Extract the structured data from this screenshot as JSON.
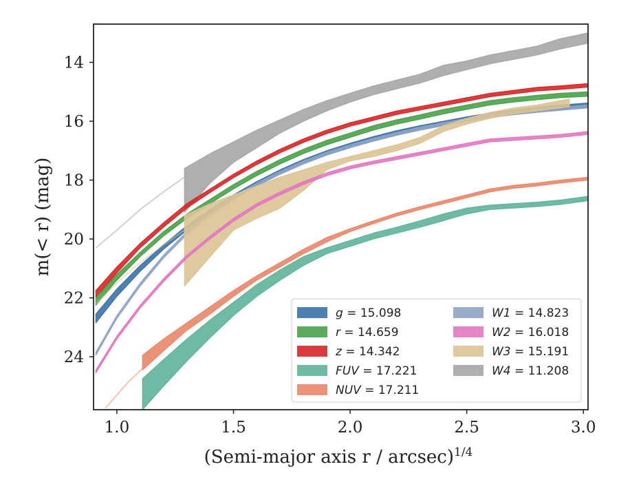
{
  "chart_data": {
    "type": "line",
    "xlabel": "(Semi-major axis r / arcsec)",
    "xlabel_sup": "1/4",
    "ylabel": "m(< r) (mag)",
    "xlim": [
      0.9,
      3.02
    ],
    "ylim": [
      25.8,
      12.7
    ],
    "y_inverted": true,
    "grid": false,
    "legend_placement": "lower-right",
    "x_ticks": [
      1.0,
      1.5,
      2.0,
      2.5,
      3.0
    ],
    "x_tick_labels": [
      "1.0",
      "1.5",
      "2.0",
      "2.5",
      "3.0"
    ],
    "y_ticks": [
      14,
      16,
      18,
      20,
      22,
      24
    ],
    "y_tick_labels": [
      "14",
      "16",
      "18",
      "20",
      "22",
      "24"
    ],
    "series": [
      {
        "name": "W4",
        "band_label": "W4 = 11.208",
        "color": "#a6a6a6",
        "faint_x": [
          0.91,
          1.0,
          1.1,
          1.2,
          1.29
        ],
        "faint_y": [
          20.3,
          19.7,
          19.0,
          18.4,
          17.9
        ],
        "x": [
          1.29,
          1.4,
          1.5,
          1.6,
          1.7,
          1.8,
          1.9,
          2.0,
          2.1,
          2.2,
          2.3,
          2.4,
          2.5,
          2.6,
          2.7,
          2.8,
          2.9,
          3.02
        ],
        "y_upper": [
          17.6,
          17.1,
          16.7,
          16.3,
          15.95,
          15.6,
          15.3,
          15.05,
          14.8,
          14.6,
          14.4,
          14.1,
          13.95,
          13.75,
          13.6,
          13.45,
          13.2,
          13.0
        ],
        "y_lower": [
          19.1,
          18.1,
          17.4,
          16.9,
          16.4,
          16.0,
          15.65,
          15.35,
          15.1,
          14.9,
          14.7,
          14.45,
          14.25,
          14.05,
          13.9,
          13.75,
          13.55,
          13.35
        ]
      },
      {
        "name": "z",
        "band_label": "z = 14.342",
        "color": "#d62728",
        "x": [
          0.91,
          1.0,
          1.1,
          1.2,
          1.3,
          1.4,
          1.5,
          1.6,
          1.7,
          1.8,
          1.9,
          2.0,
          2.1,
          2.2,
          2.3,
          2.4,
          2.5,
          2.6,
          2.7,
          2.8,
          2.9,
          3.02
        ],
        "y_upper": [
          21.75,
          20.95,
          20.15,
          19.45,
          18.8,
          18.3,
          17.8,
          17.35,
          16.95,
          16.6,
          16.3,
          16.05,
          15.85,
          15.65,
          15.5,
          15.35,
          15.2,
          15.05,
          14.95,
          14.85,
          14.8,
          14.72
        ],
        "y_lower": [
          22.0,
          21.15,
          20.3,
          19.6,
          18.95,
          18.42,
          17.92,
          17.47,
          17.07,
          16.72,
          16.42,
          16.17,
          15.97,
          15.77,
          15.62,
          15.47,
          15.32,
          15.17,
          15.07,
          14.97,
          14.92,
          14.84
        ]
      },
      {
        "name": "r",
        "band_label": "r = 14.659",
        "color": "#4aa14a",
        "x": [
          0.91,
          1.0,
          1.1,
          1.2,
          1.3,
          1.4,
          1.5,
          1.6,
          1.7,
          1.8,
          1.9,
          2.0,
          2.1,
          2.2,
          2.3,
          2.4,
          2.5,
          2.6,
          2.7,
          2.8,
          2.9,
          3.02
        ],
        "y_upper": [
          22.0,
          21.2,
          20.45,
          19.75,
          19.15,
          18.65,
          18.15,
          17.7,
          17.3,
          16.95,
          16.65,
          16.4,
          16.15,
          15.95,
          15.78,
          15.6,
          15.45,
          15.3,
          15.2,
          15.12,
          15.05,
          15.0
        ],
        "y_lower": [
          22.25,
          21.4,
          20.6,
          19.9,
          19.3,
          18.8,
          18.3,
          17.85,
          17.45,
          17.1,
          16.8,
          16.55,
          16.3,
          16.1,
          15.93,
          15.75,
          15.6,
          15.45,
          15.35,
          15.27,
          15.2,
          15.15
        ]
      },
      {
        "name": "g",
        "band_label": "g = 15.098",
        "color": "#3b72a8",
        "x": [
          0.91,
          1.0,
          1.1,
          1.2,
          1.3,
          1.4,
          1.5,
          1.6,
          1.7,
          1.8,
          1.9,
          2.0,
          2.1,
          2.2,
          2.3,
          2.4,
          2.5,
          2.6,
          2.7,
          2.8,
          2.9,
          3.02
        ],
        "y_upper": [
          22.55,
          21.7,
          20.9,
          20.2,
          19.55,
          19.0,
          18.5,
          18.05,
          17.65,
          17.3,
          17.0,
          16.75,
          16.52,
          16.32,
          16.15,
          16.0,
          15.85,
          15.72,
          15.62,
          15.52,
          15.45,
          15.38
        ],
        "y_lower": [
          22.85,
          21.95,
          21.1,
          20.35,
          19.7,
          19.15,
          18.65,
          18.2,
          17.8,
          17.45,
          17.15,
          16.9,
          16.67,
          16.47,
          16.3,
          16.15,
          16.0,
          15.87,
          15.77,
          15.67,
          15.6,
          15.53
        ]
      },
      {
        "name": "W1",
        "band_label": "W1 = 14.823",
        "color": "#8fa3c7",
        "x": [
          0.91,
          1.0,
          1.1,
          1.2,
          1.3,
          1.4,
          1.5,
          1.6,
          1.7,
          1.8,
          1.9,
          2.0,
          2.1,
          2.2,
          2.3,
          2.4,
          2.5,
          2.6,
          2.7,
          2.8,
          2.9,
          3.02
        ],
        "y_upper": [
          23.85,
          22.6,
          21.5,
          20.55,
          19.75,
          19.1,
          18.55,
          18.1,
          17.7,
          17.35,
          17.05,
          16.8,
          16.58,
          16.38,
          16.2,
          16.05,
          15.9,
          15.78,
          15.68,
          15.6,
          15.53,
          15.45
        ],
        "y_lower": [
          23.95,
          22.7,
          21.6,
          20.65,
          19.85,
          19.2,
          18.65,
          18.2,
          17.8,
          17.45,
          17.15,
          16.9,
          16.68,
          16.48,
          16.3,
          16.15,
          16.0,
          15.88,
          15.78,
          15.7,
          15.63,
          15.55
        ]
      },
      {
        "name": "W3",
        "band_label": "W3 = 15.191",
        "color": "#dcc394",
        "faint_x": [
          0.91,
          1.0,
          1.1,
          1.2,
          1.29
        ],
        "faint_y": [
          22.2,
          21.5,
          20.8,
          20.2,
          19.7
        ],
        "x": [
          1.29,
          1.4,
          1.5,
          1.6,
          1.7,
          1.8,
          1.9,
          2.0,
          2.1,
          2.2,
          2.3,
          2.4,
          2.5,
          2.6,
          2.7,
          2.8,
          2.9,
          2.94
        ],
        "y_upper": [
          19.2,
          18.8,
          18.5,
          18.2,
          17.9,
          17.65,
          17.4,
          17.2,
          17.0,
          16.8,
          16.55,
          16.15,
          15.9,
          15.7,
          15.55,
          15.45,
          15.3,
          15.25
        ],
        "y_lower": [
          21.6,
          20.6,
          19.7,
          19.3,
          18.95,
          18.35,
          17.65,
          17.35,
          17.2,
          17.0,
          16.75,
          16.35,
          16.1,
          15.9,
          15.75,
          15.65,
          15.55,
          15.5
        ]
      },
      {
        "name": "W2",
        "band_label": "W2 = 16.018",
        "color": "#e377c2",
        "x": [
          0.91,
          1.0,
          1.1,
          1.2,
          1.3,
          1.4,
          1.5,
          1.6,
          1.7,
          1.8,
          1.9,
          2.0,
          2.1,
          2.2,
          2.3,
          2.4,
          2.5,
          2.6,
          2.7,
          2.8,
          2.9,
          3.02
        ],
        "y_upper": [
          24.45,
          23.3,
          22.25,
          21.35,
          20.55,
          19.9,
          19.3,
          18.8,
          18.4,
          18.05,
          17.75,
          17.52,
          17.35,
          17.2,
          17.05,
          16.9,
          16.75,
          16.6,
          16.55,
          16.5,
          16.45,
          16.35
        ],
        "y_lower": [
          24.55,
          23.4,
          22.35,
          21.45,
          20.65,
          20.0,
          19.4,
          18.9,
          18.5,
          18.15,
          17.85,
          17.62,
          17.45,
          17.3,
          17.15,
          17.0,
          16.85,
          16.7,
          16.65,
          16.6,
          16.55,
          16.45
        ]
      },
      {
        "name": "NUV",
        "band_label": "NUV = 17.211",
        "color": "#e9876a",
        "faint_x": [
          0.95,
          1.0,
          1.05,
          1.11
        ],
        "faint_y": [
          25.75,
          25.3,
          24.85,
          24.4
        ],
        "x": [
          1.11,
          1.2,
          1.3,
          1.4,
          1.5,
          1.6,
          1.7,
          1.8,
          1.9,
          2.0,
          2.1,
          2.2,
          2.3,
          2.4,
          2.5,
          2.6,
          2.7,
          2.8,
          2.9,
          3.02
        ],
        "y_upper": [
          23.95,
          23.4,
          22.85,
          22.3,
          21.75,
          21.25,
          20.8,
          20.35,
          19.95,
          19.65,
          19.38,
          19.12,
          18.9,
          18.7,
          18.5,
          18.3,
          18.18,
          18.1,
          18.0,
          17.9
        ],
        "y_lower": [
          24.45,
          23.8,
          23.1,
          22.55,
          21.95,
          21.4,
          20.95,
          20.5,
          20.1,
          19.75,
          19.48,
          19.22,
          19.0,
          18.8,
          18.6,
          18.4,
          18.28,
          18.2,
          18.1,
          18.0
        ]
      },
      {
        "name": "FUV",
        "band_label": "FUV = 17.221",
        "color": "#5fb39a",
        "x": [
          1.11,
          1.2,
          1.3,
          1.4,
          1.5,
          1.6,
          1.7,
          1.8,
          1.9,
          2.0,
          2.1,
          2.2,
          2.3,
          2.4,
          2.5,
          2.6,
          2.7,
          2.8,
          2.9,
          3.02
        ],
        "y_upper": [
          24.75,
          24.1,
          23.4,
          22.75,
          22.15,
          21.55,
          21.05,
          20.6,
          20.3,
          20.05,
          19.8,
          19.6,
          19.38,
          19.15,
          18.95,
          18.85,
          18.8,
          18.75,
          18.68,
          18.55
        ],
        "y_lower": [
          25.8,
          25.0,
          24.15,
          23.35,
          22.6,
          21.95,
          21.4,
          20.9,
          20.5,
          20.25,
          20.0,
          19.8,
          19.6,
          19.38,
          19.15,
          19.0,
          18.95,
          18.9,
          18.83,
          18.7
        ]
      }
    ]
  },
  "legend": {
    "items": [
      {
        "sym": "g",
        "value": "= 15.098",
        "color": "#3b72a8"
      },
      {
        "sym": "r",
        "value": "= 14.659",
        "color": "#4aa14a"
      },
      {
        "sym": "z",
        "value": "= 14.342",
        "color": "#d62728"
      },
      {
        "sym": "FUV",
        "value": "= 17.221",
        "color": "#5fb39a"
      },
      {
        "sym": "NUV",
        "value": "= 17.211",
        "color": "#e9876a"
      },
      {
        "sym": "W1",
        "value": "= 14.823",
        "color": "#8fa3c7"
      },
      {
        "sym": "W2",
        "value": "= 16.018",
        "color": "#e377c2"
      },
      {
        "sym": "W3",
        "value": "= 15.191",
        "color": "#dcc394"
      },
      {
        "sym": "W4",
        "value": "= 11.208",
        "color": "#a6a6a6"
      }
    ]
  }
}
